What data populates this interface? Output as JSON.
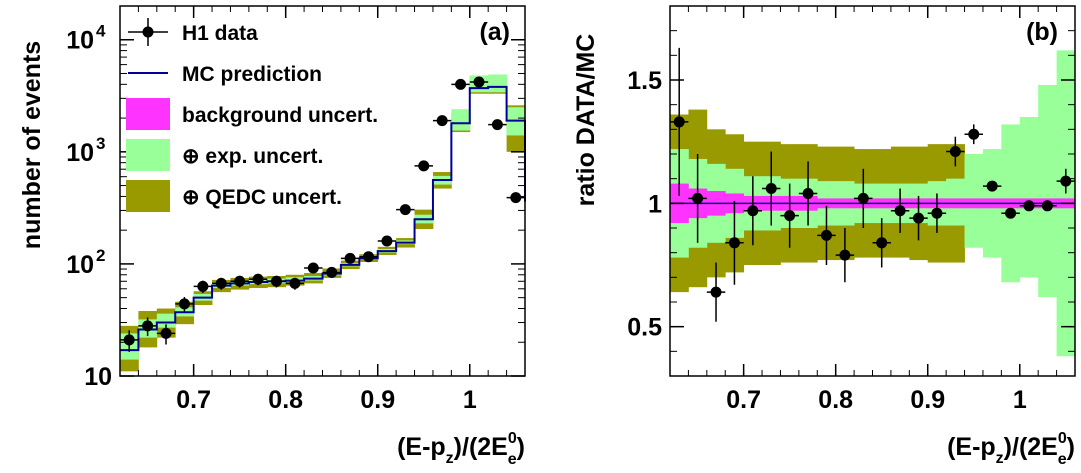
{
  "colors": {
    "background_band": "#ff33ff",
    "exp_band": "#99ff99",
    "qedc_band": "#999900",
    "mc_line": "#000099",
    "data_marker": "#000000"
  },
  "chart_data": [
    {
      "type": "line",
      "panel_label": "(a)",
      "xlabel": {
        "main": "(E-p",
        "sub": "z",
        "mid": ")/(2E",
        "sup": "0",
        "sub2": "e",
        "tail": ")"
      },
      "ylabel": "number of events",
      "xlim": [
        0.62,
        1.06
      ],
      "ylim": [
        10,
        20000
      ],
      "ylog": true,
      "x_ticks": [
        0.7,
        0.8,
        0.9,
        1
      ],
      "x_tick_labels": [
        "0.7",
        "0.8",
        "0.9",
        "1"
      ],
      "y_ticks": [
        10,
        100,
        1000,
        10000
      ],
      "y_tick_labels": [
        {
          "base": "10",
          "exp": ""
        },
        {
          "base": "10",
          "exp": "2"
        },
        {
          "base": "10",
          "exp": "3"
        },
        {
          "base": "10",
          "exp": "4"
        }
      ],
      "legend": [
        {
          "label": "H1 data",
          "kind": "marker"
        },
        {
          "label": "MC prediction",
          "kind": "line"
        },
        {
          "label": "background uncert.",
          "kind": "box",
          "color": "#ff33ff"
        },
        {
          "label": "⊕ exp. uncert.",
          "kind": "box",
          "color": "#99ff99"
        },
        {
          "label": "⊕ QEDC uncert.",
          "kind": "box",
          "color": "#999900"
        }
      ],
      "bin_edges": [
        0.62,
        0.64,
        0.66,
        0.68,
        0.7,
        0.72,
        0.74,
        0.76,
        0.78,
        0.8,
        0.82,
        0.84,
        0.86,
        0.88,
        0.9,
        0.92,
        0.94,
        0.96,
        0.98,
        1.0,
        1.02,
        1.04,
        1.06
      ],
      "mc": [
        17,
        26,
        30,
        37,
        50,
        64,
        67,
        69,
        70,
        71,
        74,
        82,
        98,
        112,
        130,
        155,
        250,
        560,
        1800,
        3700,
        3800,
        1900,
        360
      ],
      "qedc_low": [
        11,
        18,
        22,
        29,
        43,
        56,
        59,
        61,
        62,
        64,
        67,
        75,
        90,
        104,
        120,
        140,
        205,
        470,
        1500,
        3300,
        3300,
        1000,
        140
      ],
      "qedc_high": [
        28,
        38,
        40,
        46,
        57,
        72,
        75,
        77,
        78,
        80,
        83,
        91,
        107,
        122,
        142,
        170,
        305,
        660,
        2200,
        4700,
        4800,
        2600,
        600
      ],
      "exp_low": [
        14,
        22,
        27,
        34,
        47,
        61,
        64,
        66,
        67,
        69,
        71,
        79,
        95,
        109,
        126,
        150,
        230,
        510,
        1550,
        3400,
        3400,
        1400,
        240
      ],
      "exp_high": [
        24,
        32,
        36,
        41,
        54,
        68,
        71,
        73,
        74,
        76,
        78,
        86,
        102,
        117,
        136,
        162,
        275,
        610,
        2400,
        4800,
        4900,
        2500,
        580
      ],
      "data_x": [
        0.63,
        0.65,
        0.67,
        0.69,
        0.71,
        0.73,
        0.75,
        0.77,
        0.79,
        0.81,
        0.83,
        0.85,
        0.87,
        0.89,
        0.91,
        0.93,
        0.95,
        0.97,
        0.99,
        1.01,
        1.03,
        1.05
      ],
      "data_y": [
        21,
        28,
        24,
        44,
        63,
        67,
        70,
        73,
        70,
        67,
        92,
        84,
        112,
        116,
        160,
        305,
        750,
        1900,
        4000,
        4200,
        1750,
        390
      ]
    },
    {
      "type": "line",
      "panel_label": "(b)",
      "xlabel": {
        "main": "(E-p",
        "sub": "z",
        "mid": ")/(2E",
        "sup": "0",
        "sub2": "e",
        "tail": ")"
      },
      "ylabel": "ratio DATA/MC",
      "xlim": [
        0.62,
        1.06
      ],
      "ylim": [
        0.3,
        1.8
      ],
      "x_ticks": [
        0.7,
        0.8,
        0.9,
        1
      ],
      "x_tick_labels": [
        "0.7",
        "0.8",
        "0.9",
        "1"
      ],
      "y_ticks": [
        0.5,
        1,
        1.5
      ],
      "y_tick_labels": [
        "0.5",
        "1",
        "1.5"
      ],
      "bin_edges": [
        0.62,
        0.64,
        0.66,
        0.68,
        0.7,
        0.72,
        0.74,
        0.76,
        0.78,
        0.8,
        0.82,
        0.84,
        0.86,
        0.88,
        0.9,
        0.92,
        0.94,
        0.96,
        0.98,
        1.0,
        1.02,
        1.04,
        1.06
      ],
      "qedc_low": [
        0.64,
        0.66,
        0.7,
        0.72,
        0.75,
        0.75,
        0.76,
        0.76,
        0.77,
        0.77,
        0.78,
        0.78,
        0.78,
        0.77,
        0.76,
        0.76
      ],
      "qedc_high": [
        1.36,
        1.38,
        1.3,
        1.28,
        1.25,
        1.25,
        1.24,
        1.24,
        1.23,
        1.23,
        1.22,
        1.22,
        1.23,
        1.23,
        1.24,
        1.24
      ],
      "exp_low": [
        0.78,
        0.82,
        0.84,
        0.86,
        0.89,
        0.89,
        0.9,
        0.9,
        0.91,
        0.91,
        0.92,
        0.92,
        0.92,
        0.92,
        0.91,
        0.91,
        0.82,
        0.78,
        0.68,
        0.7,
        0.62,
        0.38
      ],
      "exp_high": [
        1.22,
        1.18,
        1.16,
        1.14,
        1.11,
        1.11,
        1.1,
        1.1,
        1.09,
        1.09,
        1.08,
        1.08,
        1.08,
        1.08,
        1.09,
        1.1,
        1.2,
        1.22,
        1.32,
        1.35,
        1.48,
        1.62
      ],
      "bg_low": [
        0.92,
        0.94,
        0.95,
        0.96,
        0.97,
        0.97,
        0.97,
        0.97,
        0.98,
        0.98,
        0.98,
        0.98,
        0.98,
        0.98,
        0.98,
        0.98,
        0.98,
        0.98,
        0.98,
        0.98,
        0.98,
        0.98
      ],
      "bg_high": [
        1.08,
        1.06,
        1.05,
        1.04,
        1.03,
        1.03,
        1.03,
        1.03,
        1.02,
        1.02,
        1.02,
        1.02,
        1.02,
        1.02,
        1.02,
        1.02,
        1.02,
        1.02,
        1.02,
        1.02,
        1.02,
        1.02
      ],
      "data_x": [
        0.63,
        0.65,
        0.67,
        0.69,
        0.71,
        0.73,
        0.75,
        0.77,
        0.79,
        0.81,
        0.83,
        0.85,
        0.87,
        0.89,
        0.91,
        0.93,
        0.95,
        0.97,
        0.99,
        1.01,
        1.03,
        1.05
      ],
      "data_y": [
        1.33,
        1.02,
        0.64,
        0.84,
        0.97,
        1.06,
        0.95,
        1.04,
        0.87,
        0.79,
        1.02,
        0.84,
        0.97,
        0.94,
        0.96,
        1.21,
        1.28,
        1.07,
        0.96,
        0.99,
        0.99,
        1.09
      ],
      "data_err": [
        0.3,
        0.18,
        0.12,
        0.17,
        0.14,
        0.15,
        0.13,
        0.13,
        0.12,
        0.11,
        0.12,
        0.1,
        0.09,
        0.09,
        0.08,
        0.06,
        0.04,
        0.02,
        0.01,
        0.01,
        0.02,
        0.05
      ]
    }
  ]
}
